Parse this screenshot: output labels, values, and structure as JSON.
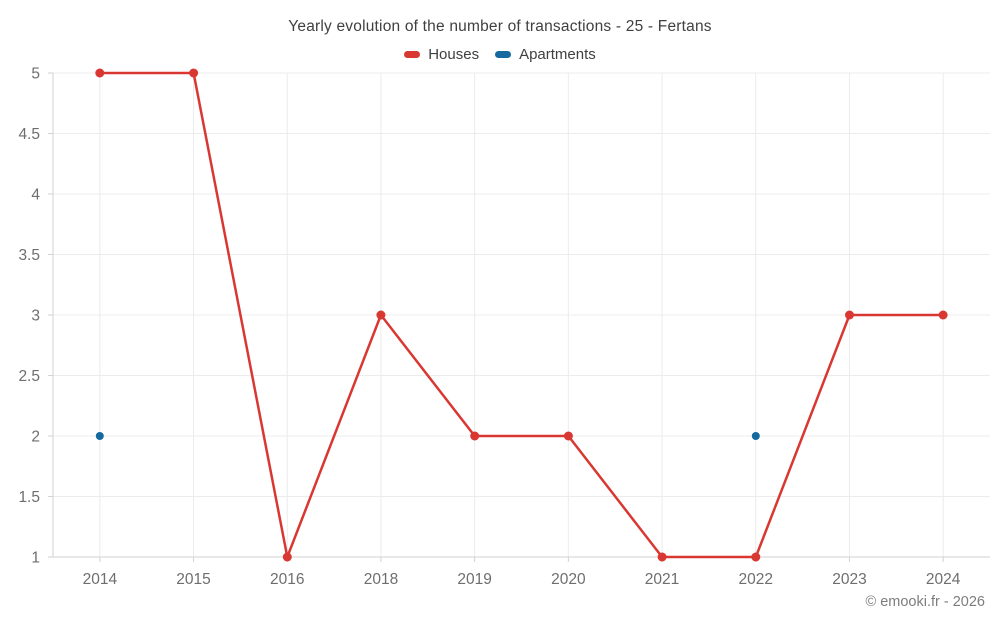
{
  "chart_data": {
    "type": "line",
    "title": "Yearly evolution of the number of transactions - 25 - Fertans",
    "categories": [
      "2014",
      "2015",
      "2016",
      "2018",
      "2019",
      "2020",
      "2021",
      "2022",
      "2023",
      "2024"
    ],
    "series": [
      {
        "name": "Houses",
        "color": "#d93732",
        "draw_line": true,
        "marker_radius": 4.5,
        "values": [
          5,
          5,
          1,
          3,
          2,
          2,
          1,
          1,
          3,
          3
        ]
      },
      {
        "name": "Apartments",
        "color": "#15699f",
        "draw_line": false,
        "marker_radius": 4,
        "values": [
          2,
          null,
          null,
          null,
          null,
          null,
          null,
          2,
          null,
          null
        ]
      }
    ],
    "ylim": [
      1,
      5
    ],
    "yticks": [
      1,
      1.5,
      2,
      2.5,
      3,
      3.5,
      4,
      4.5,
      5
    ],
    "grid": true,
    "legend_position": "top",
    "colors": {
      "gridline": "#ececec",
      "axis_line": "#d2d2d2",
      "tick_label": "#6e6e6e",
      "title_text": "#404040"
    },
    "footer": "© emooki.fr - 2026"
  }
}
